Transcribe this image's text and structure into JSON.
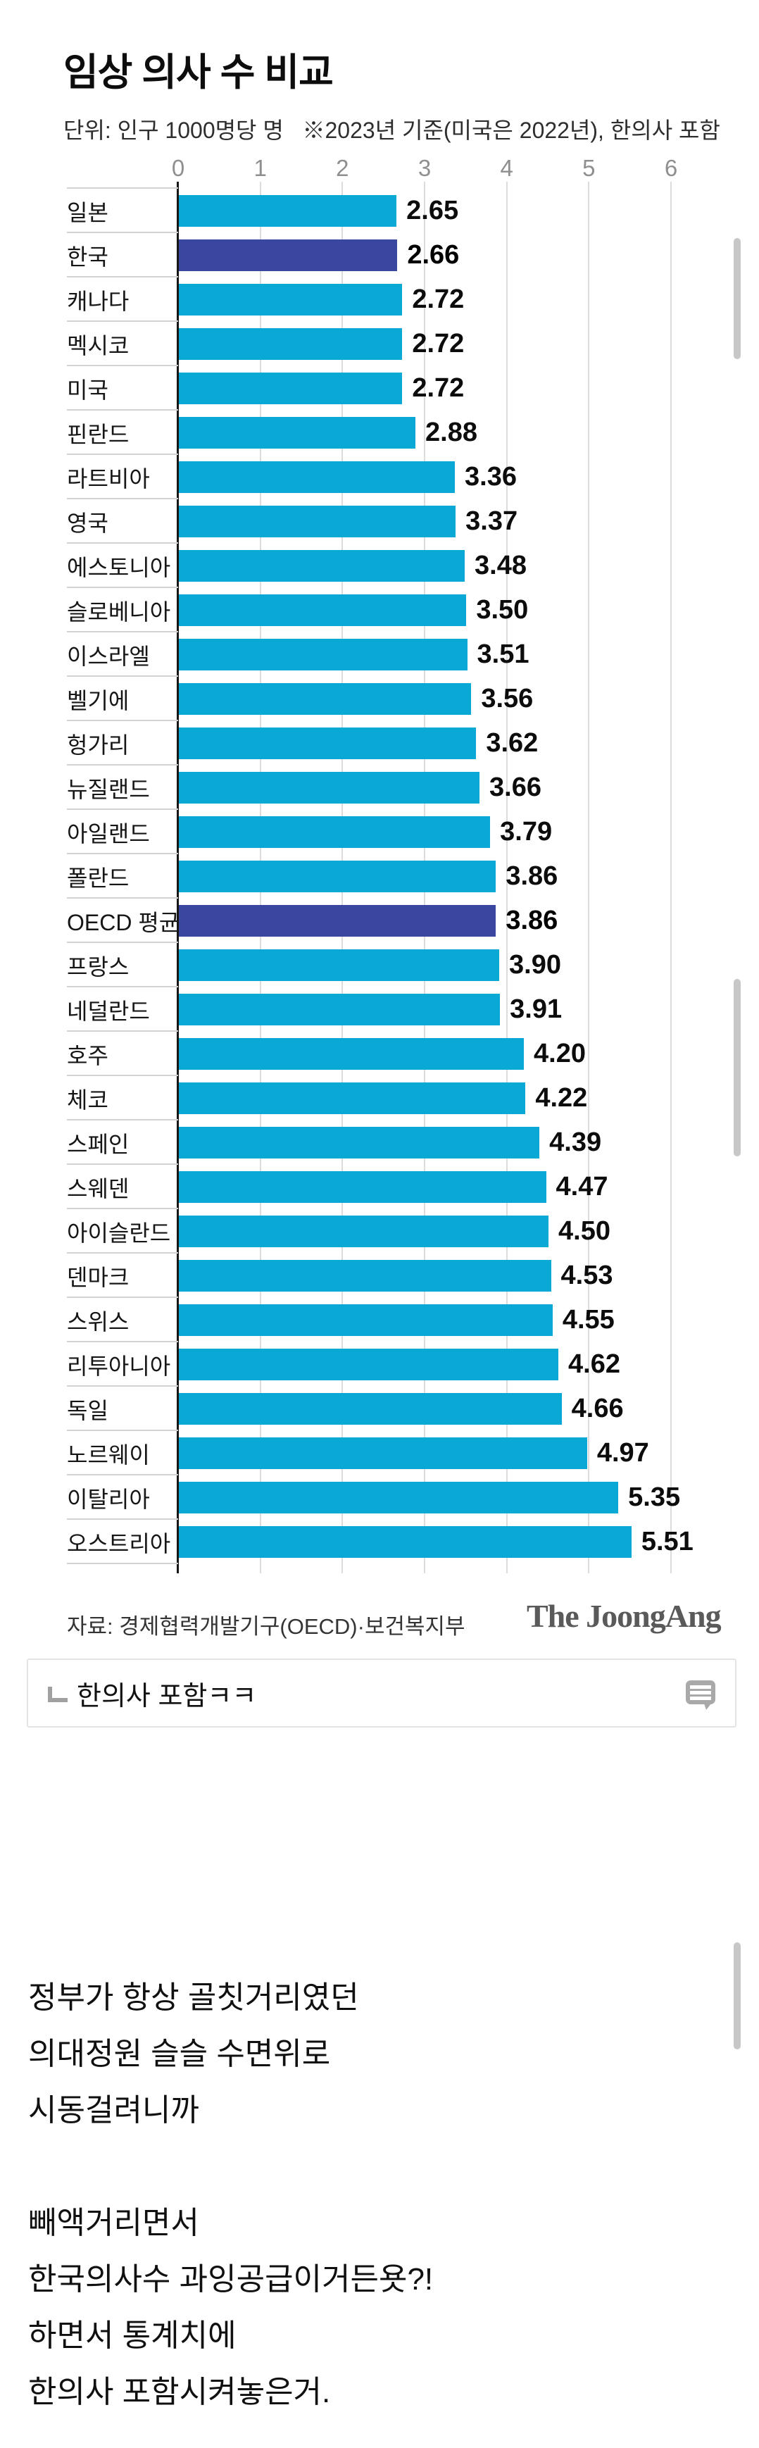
{
  "chart": {
    "title": "임상 의사 수 비교",
    "subtitle": "단위: 인구 1000명당 명   ※2023년 기준(미국은 2022년), 한의사 포함",
    "source": "자료: 경제협력개발기구(OECD)·보건복지부",
    "brand": "The JoongAng"
  },
  "chart_data": {
    "type": "bar",
    "orientation": "horizontal",
    "title": "임상 의사 수 비교",
    "unit_note": "단위: 인구 1000명당 명",
    "basis_note": "※2023년 기준(미국은 2022년), 한의사 포함",
    "xlim": [
      0,
      6
    ],
    "x_ticks": [
      0,
      1,
      2,
      3,
      4,
      5,
      6
    ],
    "grid": true,
    "categories": [
      "일본",
      "한국",
      "캐나다",
      "멕시코",
      "미국",
      "핀란드",
      "라트비아",
      "영국",
      "에스토니아",
      "슬로베니아",
      "이스라엘",
      "벨기에",
      "헝가리",
      "뉴질랜드",
      "아일랜드",
      "폴란드",
      "OECD 평균",
      "프랑스",
      "네덜란드",
      "호주",
      "체코",
      "스페인",
      "스웨덴",
      "아이슬란드",
      "덴마크",
      "스위스",
      "리투아니아",
      "독일",
      "노르웨이",
      "이탈리아",
      "오스트리아"
    ],
    "values": [
      2.65,
      2.66,
      2.72,
      2.72,
      2.72,
      2.88,
      3.36,
      3.37,
      3.48,
      3.5,
      3.51,
      3.56,
      3.62,
      3.66,
      3.79,
      3.86,
      3.86,
      3.9,
      3.91,
      4.2,
      4.22,
      4.39,
      4.47,
      4.5,
      4.53,
      4.55,
      4.62,
      4.66,
      4.97,
      5.35,
      5.51
    ],
    "value_labels": [
      "2.65",
      "2.66",
      "2.72",
      "2.72",
      "2.72",
      "2.88",
      "3.36",
      "3.37",
      "3.48",
      "3.50",
      "3.51",
      "3.56",
      "3.62",
      "3.66",
      "3.79",
      "3.86",
      "3.86",
      "3.90",
      "3.91",
      "4.20",
      "4.22",
      "4.39",
      "4.47",
      "4.50",
      "4.53",
      "4.55",
      "4.62",
      "4.66",
      "4.97",
      "5.35",
      "5.51"
    ],
    "highlighted_categories": [
      "한국",
      "OECD 평균"
    ],
    "highlight_indices": [
      1,
      16
    ],
    "bar_color": "#09A8D5",
    "highlight_color": "#3A47A0",
    "legend": false
  },
  "comment": {
    "reply_text": "한의사 포함ㅋㅋ",
    "bubble_icon": "comment-bubble",
    "reply_icon": "reply-corner-arrow"
  },
  "body": {
    "lines": [
      "정부가 항상 골칫거리였던",
      "의대정원 슬슬 수면위로",
      "시동걸려니까",
      "",
      "빼액거리면서",
      "한국의사수 과잉공급이거든욧?!",
      "하면서 통계치에",
      "한의사 포함시켜놓은거."
    ]
  },
  "colors": {
    "bar": "#09A8D5",
    "highlight": "#3A47A0",
    "gridline": "#dcdcdc",
    "axis": "#161616",
    "separator": "#d2d2d2",
    "tick_text": "#8f8f8f",
    "scrollbar": "#c7c7c7"
  }
}
